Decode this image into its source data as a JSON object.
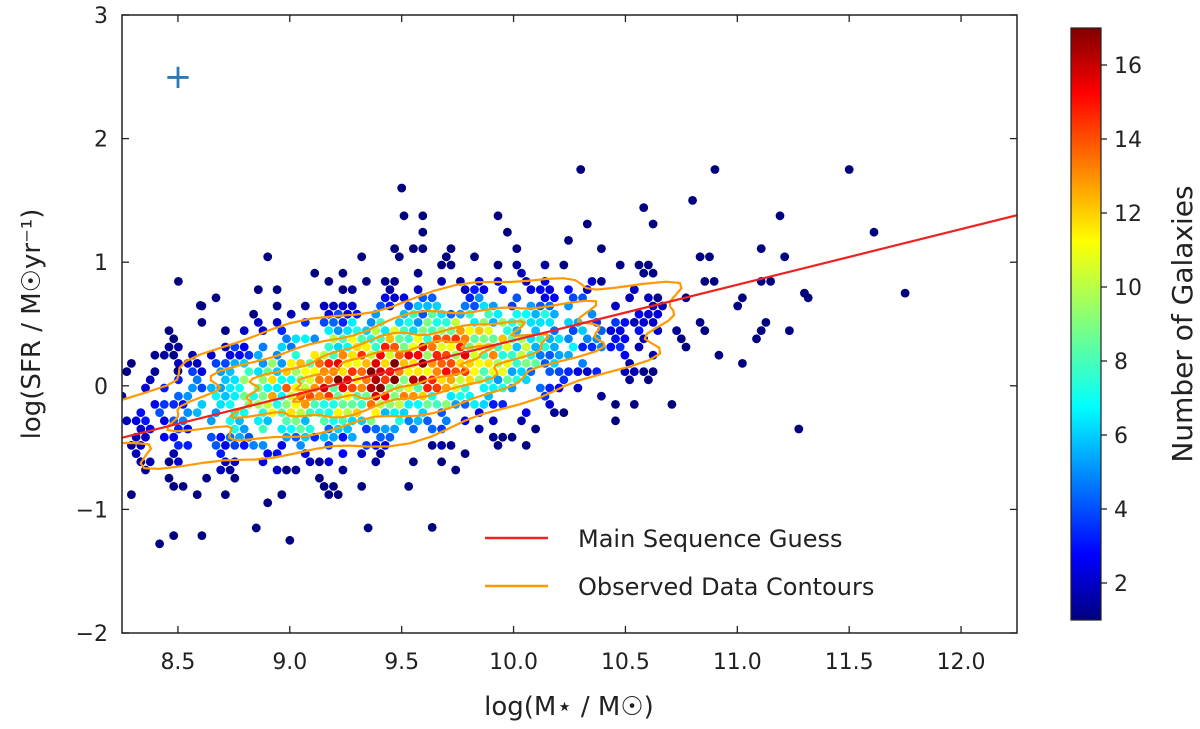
{
  "chart_data": {
    "type": "scatter",
    "subtype": "hexbin-density",
    "title": "",
    "xlabel": "log(M⋆ / M☉)",
    "ylabel": "log(SFR / M☉yr⁻¹)",
    "xlim": [
      8.25,
      12.25
    ],
    "ylim": [
      -2,
      3
    ],
    "xticks": [
      "8.5",
      "9.0",
      "9.5",
      "10.0",
      "10.5",
      "11.0",
      "11.5",
      "12.0"
    ],
    "yticks": [
      "−2",
      "−1",
      "0",
      "1",
      "2",
      "3"
    ],
    "xtick_values": [
      8.5,
      9.0,
      9.5,
      10.0,
      10.5,
      11.0,
      11.5,
      12.0
    ],
    "ytick_values": [
      -2,
      -1,
      0,
      1,
      2,
      3
    ],
    "colorbar": {
      "label": "Number of Galaxies",
      "range": [
        1,
        17
      ],
      "ticks": [
        "2",
        "4",
        "6",
        "8",
        "10",
        "12",
        "14",
        "16"
      ],
      "tick_values": [
        2,
        4,
        6,
        8,
        10,
        12,
        14,
        16
      ],
      "colormap": "jet"
    },
    "density_model": {
      "center": [
        9.45,
        0.12
      ],
      "slope": 0.45,
      "major_sigma": 0.72,
      "minor_sigma": 0.34,
      "peak_count": 17
    },
    "main_sequence": {
      "name": "Main Sequence Guess",
      "color": "#ee2222",
      "x": [
        8.25,
        12.25
      ],
      "y": [
        -0.42,
        1.38
      ]
    },
    "contours": {
      "name": "Observed Data Contours",
      "color": "#ff9900",
      "levels": [
        {
          "a": 1.38,
          "b": 0.52,
          "rough": 0.06
        },
        {
          "a": 1.02,
          "b": 0.36,
          "rough": 0.07
        },
        {
          "a": 0.72,
          "b": 0.25,
          "rough": 0.08
        },
        {
          "a": 0.45,
          "b": 0.15,
          "rough": 0.1
        }
      ]
    },
    "marker": {
      "x": 8.5,
      "y": 2.5,
      "symbol": "+",
      "color": "#2a7ab8"
    },
    "outliers": [
      [
        9.5,
        1.6
      ],
      [
        10.3,
        1.75
      ],
      [
        10.9,
        1.75
      ],
      [
        11.5,
        1.75
      ],
      [
        11.75,
        0.75
      ],
      [
        8.6,
        0.65
      ],
      [
        9.0,
        -1.25
      ],
      [
        8.85,
        -1.15
      ],
      [
        9.35,
        -1.15
      ],
      [
        11.3,
        0.75
      ],
      [
        10.8,
        1.5
      ],
      [
        8.5,
        0.12
      ]
    ],
    "legend": {
      "position": "lower-right",
      "entries": [
        "Main Sequence Guess",
        "Observed Data Contours"
      ]
    }
  }
}
